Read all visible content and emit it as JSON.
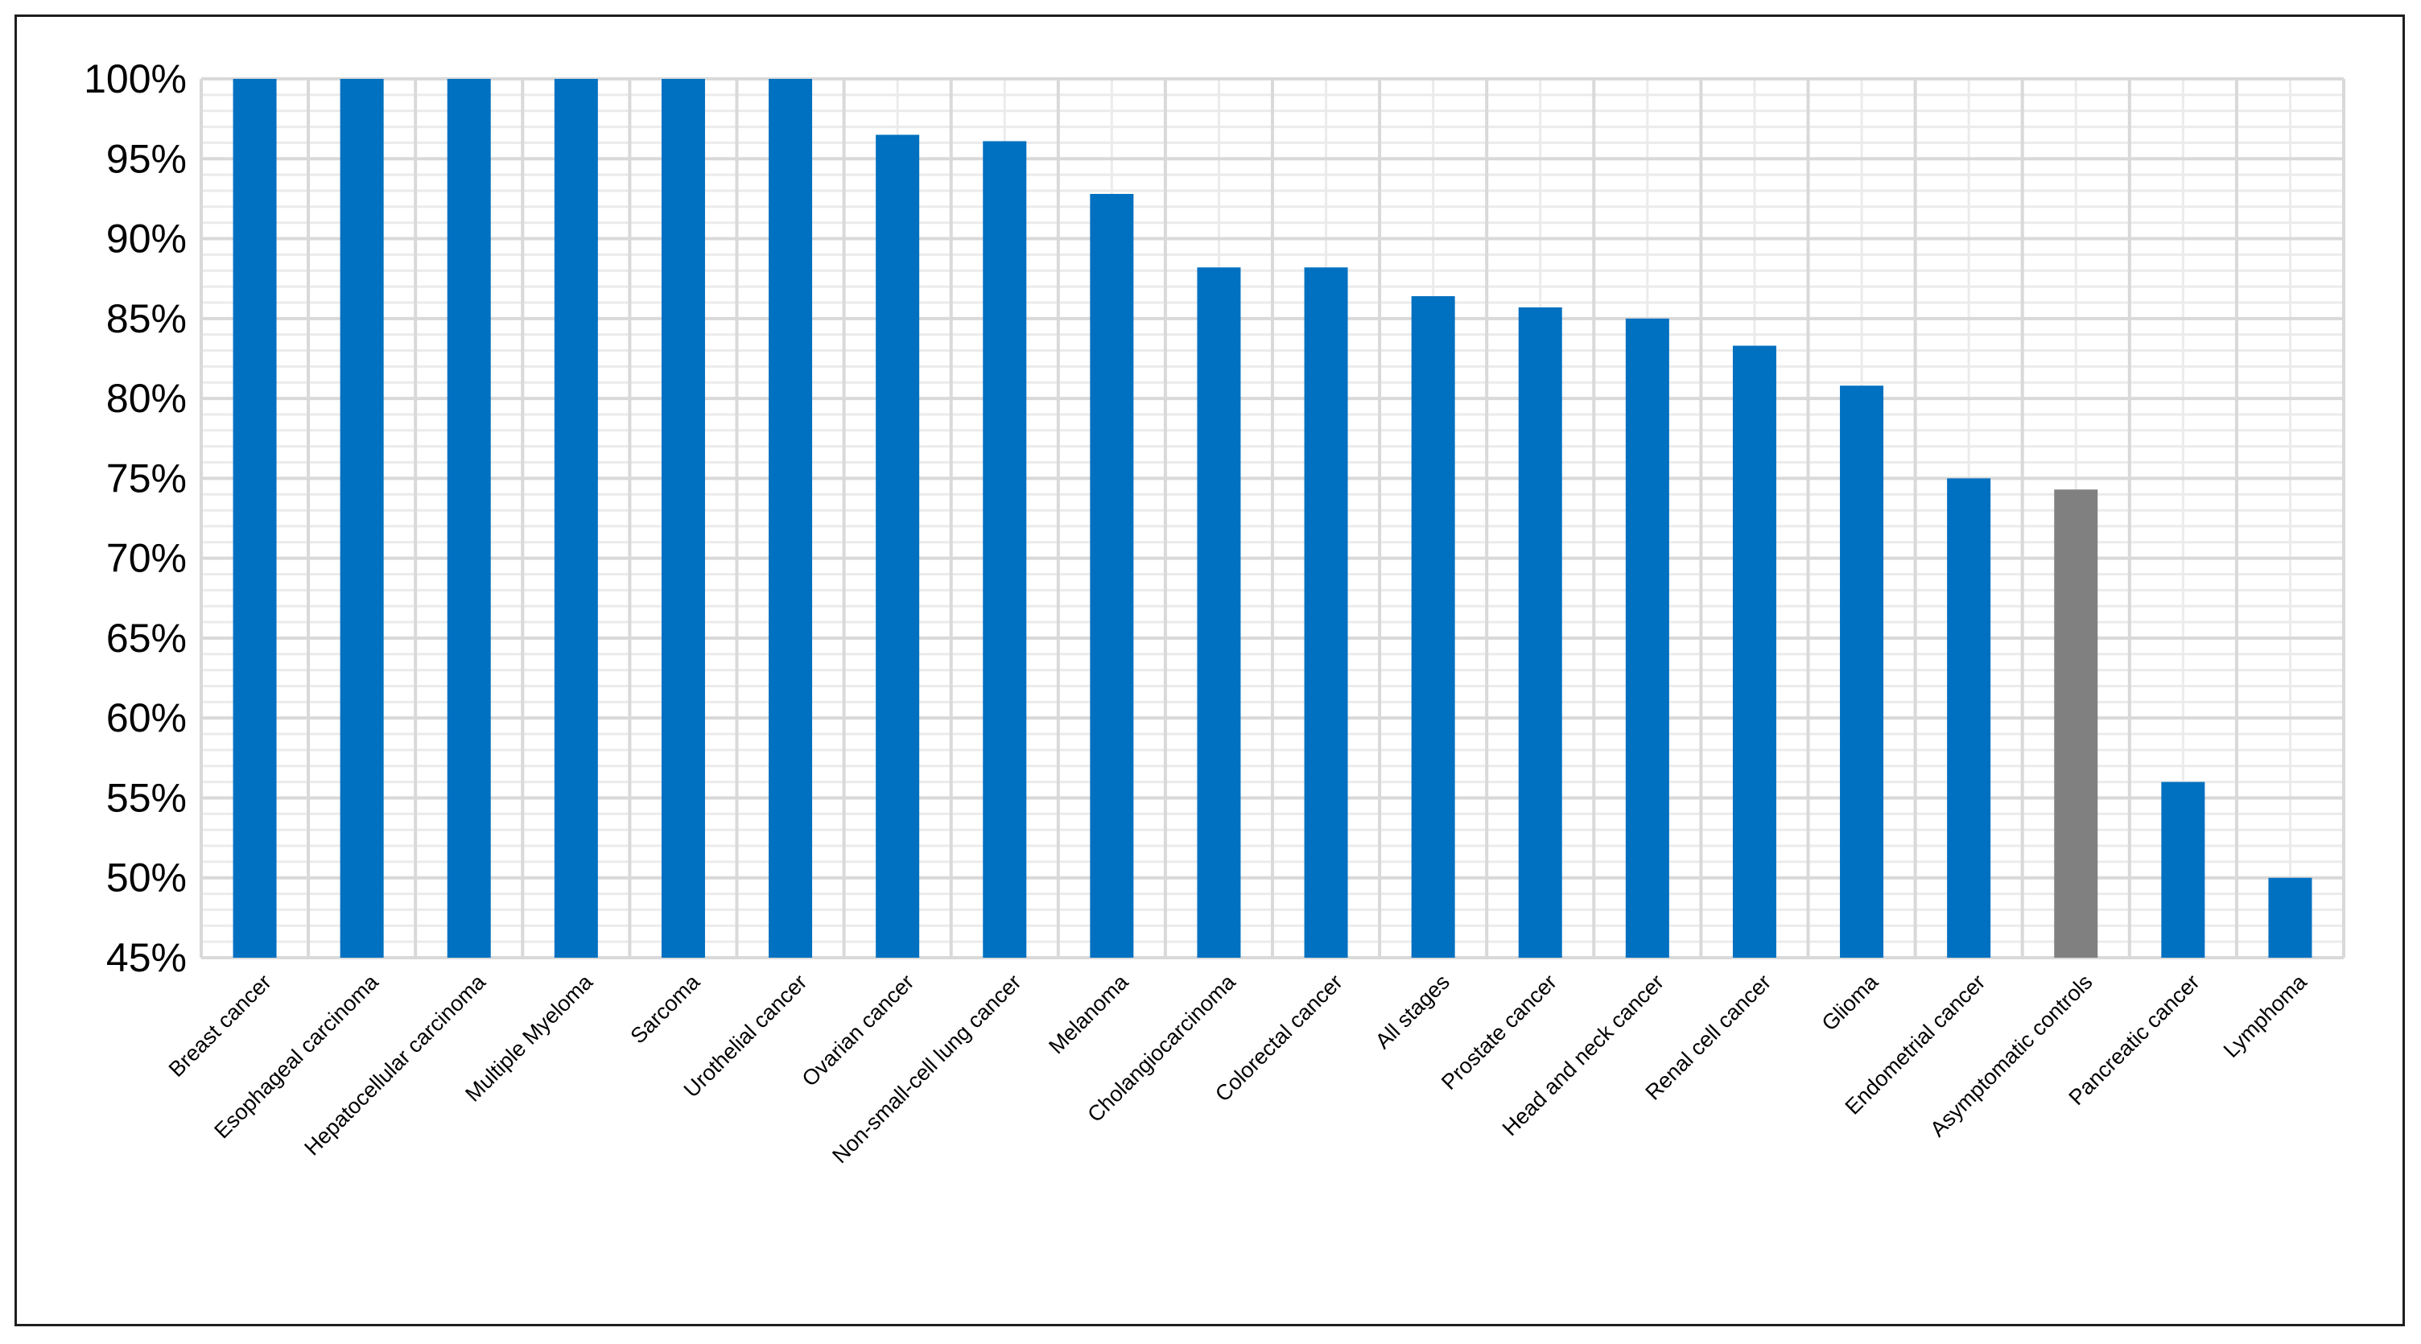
{
  "chart_data": {
    "type": "bar",
    "title": "",
    "xlabel": "",
    "ylabel": "",
    "categories": [
      "Breast cancer",
      "Esophageal carcinoma",
      "Hepatocellular carcinoma",
      "Multiple Myeloma",
      "Sarcoma",
      "Urothelial cancer",
      "Ovarian cancer",
      "Non-small-cell lung cancer",
      "Melanoma",
      "Cholangiocarcinoma",
      "Colorectal cancer",
      "All stages",
      "Prostate cancer",
      "Head and neck cancer",
      "Renal cell cancer",
      "Glioma",
      "Endometrial cancer",
      "Asymptomatic controls",
      "Pancreatic cancer",
      "Lymphoma"
    ],
    "values": [
      100,
      100,
      100,
      100,
      100,
      100,
      96.5,
      96.1,
      92.8,
      88.2,
      88.2,
      86.4,
      85.7,
      85.0,
      83.3,
      80.8,
      75.0,
      74.3,
      56.0,
      50.0
    ],
    "bar_colors": [
      "#0070C0",
      "#0070C0",
      "#0070C0",
      "#0070C0",
      "#0070C0",
      "#0070C0",
      "#0070C0",
      "#0070C0",
      "#0070C0",
      "#0070C0",
      "#0070C0",
      "#0070C0",
      "#0070C0",
      "#0070C0",
      "#0070C0",
      "#0070C0",
      "#0070C0",
      "#808080",
      "#0070C0",
      "#0070C0"
    ],
    "ylim": [
      45,
      100
    ],
    "yticks": [
      45,
      50,
      55,
      60,
      65,
      70,
      75,
      80,
      85,
      90,
      95,
      100
    ],
    "ytick_labels": [
      "45%",
      "50%",
      "55%",
      "60%",
      "65%",
      "70%",
      "75%",
      "80%",
      "85%",
      "90%",
      "95%",
      "100%"
    ],
    "grid": true,
    "legend": "none",
    "colors": {
      "major_grid": "#d9d9d9",
      "minor_grid": "#ebebeb"
    }
  }
}
